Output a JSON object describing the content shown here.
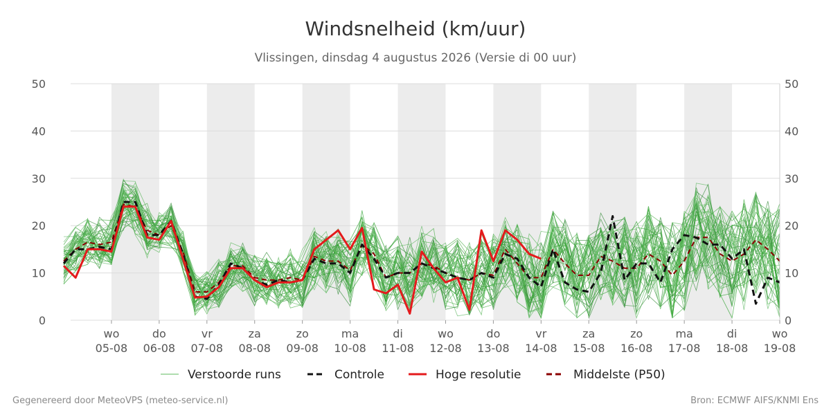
{
  "chart_data": {
    "type": "line",
    "title": "Windsnelheid (km/uur)",
    "subtitle": "Vlissingen, dinsdag  4 augustus 2026 (Versie di 00 uur)",
    "ylim": [
      0,
      50
    ],
    "yticks": [
      0,
      10,
      20,
      30,
      40,
      50
    ],
    "x_axis": {
      "start_day": 4.0,
      "end_day": 19.0,
      "day_labels": [
        {
          "day": 5,
          "weekday": "wo",
          "date": "05-08"
        },
        {
          "day": 6,
          "weekday": "do",
          "date": "06-08"
        },
        {
          "day": 7,
          "weekday": "vr",
          "date": "07-08"
        },
        {
          "day": 8,
          "weekday": "za",
          "date": "08-08"
        },
        {
          "day": 9,
          "weekday": "zo",
          "date": "09-08"
        },
        {
          "day": 10,
          "weekday": "ma",
          "date": "10-08"
        },
        {
          "day": 11,
          "weekday": "di",
          "date": "11-08"
        },
        {
          "day": 12,
          "weekday": "wo",
          "date": "12-08"
        },
        {
          "day": 13,
          "weekday": "do",
          "date": "13-08"
        },
        {
          "day": 14,
          "weekday": "vr",
          "date": "14-08"
        },
        {
          "day": 15,
          "weekday": "za",
          "date": "15-08"
        },
        {
          "day": 16,
          "weekday": "zo",
          "date": "16-08"
        },
        {
          "day": 17,
          "weekday": "ma",
          "date": "17-08"
        },
        {
          "day": 18,
          "weekday": "di",
          "date": "18-08"
        },
        {
          "day": 19,
          "weekday": "wo",
          "date": "19-08"
        }
      ],
      "shaded_days": [
        [
          5,
          6
        ],
        [
          7,
          8
        ],
        [
          9,
          10
        ],
        [
          11,
          12
        ],
        [
          13,
          14
        ],
        [
          15,
          16
        ],
        [
          17,
          18
        ]
      ]
    },
    "legend": [
      {
        "key": "ensemble",
        "label": "Verstoorde runs",
        "color": "#5cb85c",
        "style": "thin"
      },
      {
        "key": "control",
        "label": "Controle",
        "color": "#111111",
        "style": "dashed"
      },
      {
        "key": "hires",
        "label": "Hoge resolutie",
        "color": "#e41a1c",
        "style": "solid"
      },
      {
        "key": "median",
        "label": "Middelste (P50)",
        "color": "#8b0000",
        "style": "dashed"
      }
    ],
    "legend_position": "bottom",
    "grid": true,
    "series": {
      "hires": {
        "x": [
          4.0,
          4.25,
          4.5,
          4.75,
          5.0,
          5.25,
          5.5,
          5.75,
          6.0,
          6.25,
          6.5,
          6.75,
          7.0,
          7.25,
          7.5,
          7.75,
          8.0,
          8.25,
          8.5,
          8.75,
          9.0,
          9.25,
          9.5,
          9.75,
          10.0,
          10.25,
          10.5,
          10.75,
          11.0,
          11.25,
          11.5,
          11.75,
          12.0,
          12.25,
          12.5,
          12.75,
          13.0,
          13.25,
          13.5,
          13.75,
          14.0
        ],
        "y": [
          11.5,
          9,
          15,
          15,
          14.5,
          24,
          24,
          17.5,
          17,
          21,
          13,
          4.8,
          5,
          7,
          11,
          11,
          8.5,
          7,
          8,
          8,
          8.5,
          15,
          17,
          19,
          15,
          19.5,
          6.5,
          5.7,
          7.5,
          1.4,
          14.5,
          11,
          8,
          9,
          2.2,
          19,
          12.5,
          19,
          17,
          14,
          13
        ]
      },
      "control": {
        "x": [
          4.0,
          4.25,
          4.5,
          4.75,
          5.0,
          5.25,
          5.5,
          5.75,
          6.0,
          6.25,
          6.5,
          6.75,
          7.0,
          7.25,
          7.5,
          7.75,
          8.0,
          8.25,
          8.5,
          8.75,
          9.0,
          9.25,
          9.5,
          9.75,
          10.0,
          10.25,
          10.5,
          10.75,
          11.0,
          11.25,
          11.5,
          11.75,
          12.0,
          12.25,
          12.5,
          12.75,
          13.0,
          13.25,
          13.5,
          13.75,
          14.0,
          14.25,
          14.5,
          14.75,
          15.0,
          15.25,
          15.5,
          15.75,
          16.0,
          16.25,
          16.5,
          16.75,
          17.0,
          17.25,
          17.5,
          17.75,
          18.0,
          18.25,
          18.5,
          18.75,
          19.0
        ],
        "y": [
          12,
          15,
          15,
          15.5,
          15,
          25,
          25,
          18,
          18,
          21,
          14,
          5,
          4.5,
          7.5,
          12,
          11,
          8.5,
          7.5,
          8.5,
          8,
          8.5,
          13,
          12,
          12,
          10,
          16,
          13,
          9,
          10,
          10,
          12,
          11,
          10,
          9,
          8.5,
          10,
          9,
          14,
          13,
          9,
          7,
          15,
          8,
          6.5,
          6,
          10,
          22,
          8.5,
          12,
          12,
          8,
          15,
          18,
          17.5,
          16,
          16,
          13,
          15,
          3.5,
          9,
          8
        ]
      },
      "median": {
        "x": [
          4.0,
          4.25,
          4.5,
          4.75,
          5.0,
          5.25,
          5.5,
          5.75,
          6.0,
          6.25,
          6.5,
          6.75,
          7.0,
          7.25,
          7.5,
          7.75,
          8.0,
          8.25,
          8.5,
          8.75,
          9.0,
          9.25,
          9.5,
          9.75,
          10.0,
          10.25,
          10.5,
          10.75,
          11.0,
          11.25,
          11.5,
          11.75,
          12.0,
          12.25,
          12.5,
          12.75,
          13.0,
          13.25,
          13.5,
          13.75,
          14.0,
          14.25,
          14.5,
          14.75,
          15.0,
          15.25,
          15.5,
          15.75,
          16.0,
          16.25,
          16.5,
          16.75,
          17.0,
          17.25,
          17.5,
          17.75,
          18.0,
          18.25,
          18.5,
          18.75,
          19.0
        ],
        "y": [
          12.5,
          15,
          16.5,
          16,
          16.5,
          24.5,
          24,
          19,
          18,
          20,
          14.5,
          6,
          6,
          8,
          11.5,
          11.5,
          9,
          8.5,
          8.5,
          9,
          8.5,
          13.5,
          12.5,
          12.5,
          10.5,
          16,
          14,
          9,
          10,
          10,
          12,
          11.5,
          10,
          9,
          8.5,
          10,
          9.5,
          15,
          12,
          9,
          9,
          15,
          12,
          9.5,
          9.5,
          13.5,
          12.5,
          11,
          11,
          14,
          12.5,
          9.5,
          12.5,
          17.5,
          17.5,
          14,
          12.5,
          14,
          17,
          15,
          12.5
        ]
      }
    },
    "ensemble_count": 50
  },
  "footer": {
    "left": "Gegenereerd door MeteoVPS (meteo-service.nl)",
    "right": "Bron: ECMWF AIFS/KNMI Ens"
  }
}
